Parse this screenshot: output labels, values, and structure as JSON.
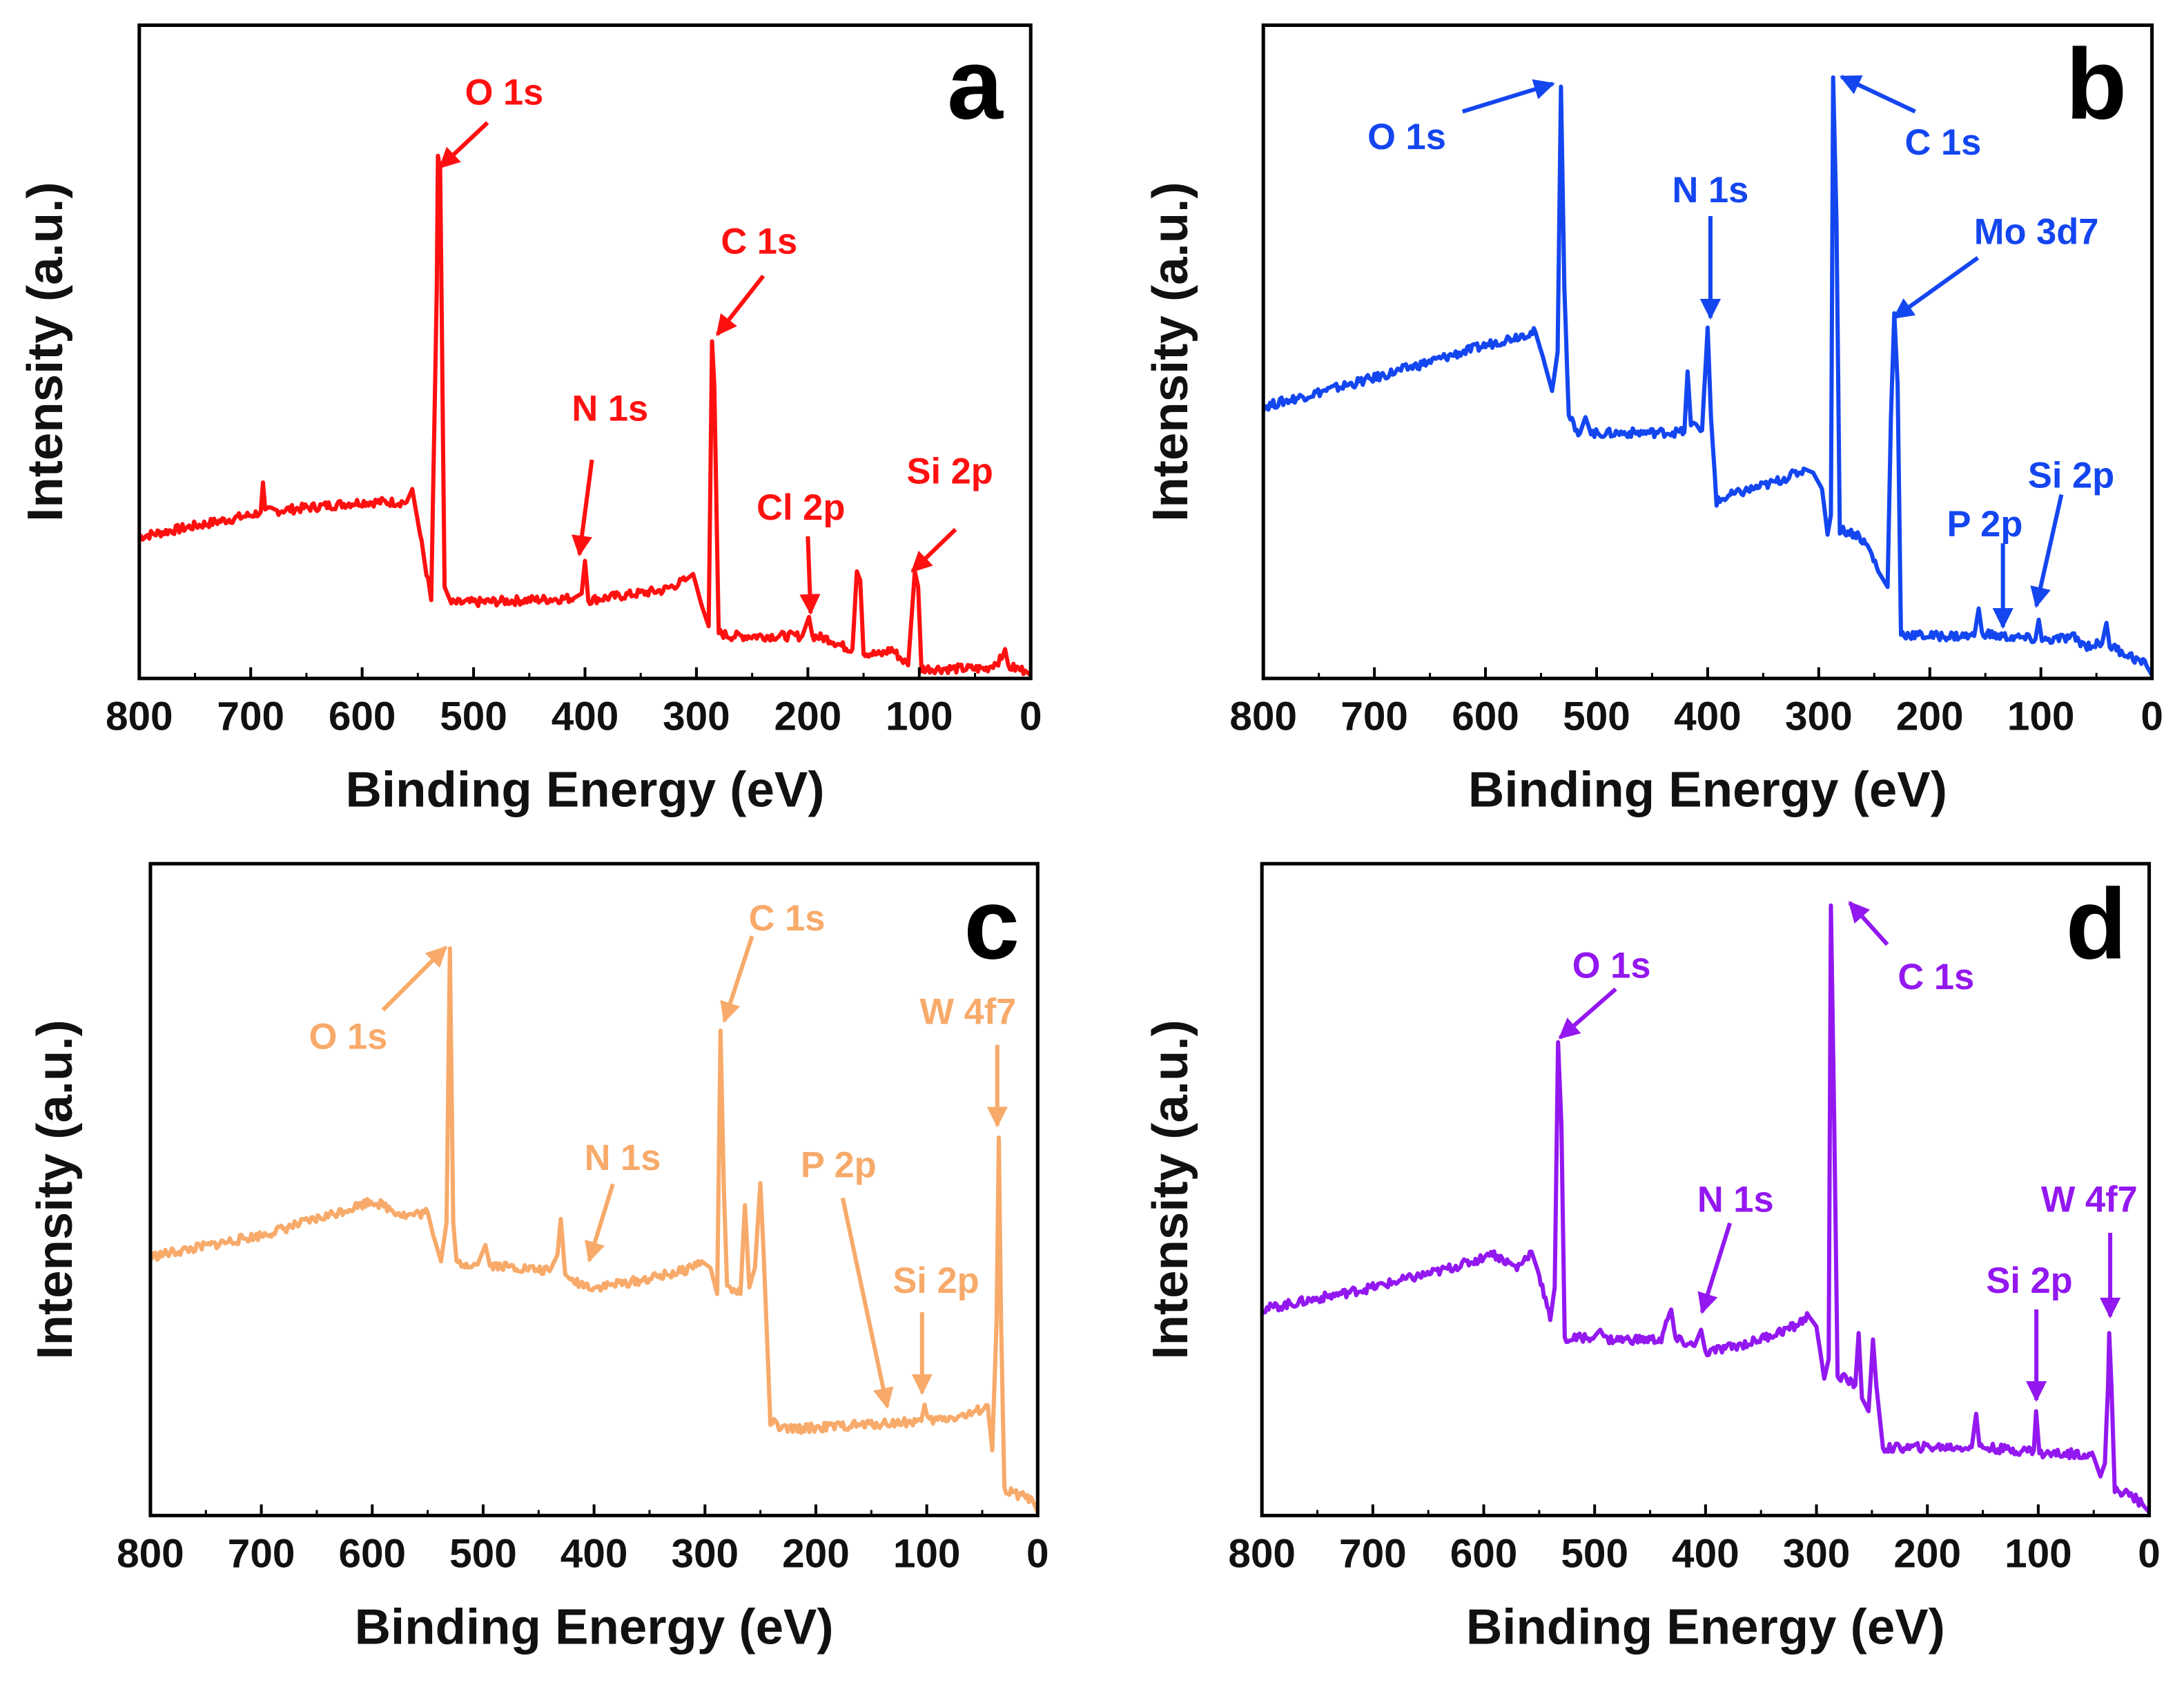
{
  "chart_data": [
    {
      "type": "line",
      "panel": "a",
      "color": "#ff1010",
      "xlabel": "Binding Energy (eV)",
      "ylabel": "Intensity (a.u.)",
      "xlim": [
        800,
        0
      ],
      "ylim": [
        0,
        100
      ],
      "xticks": [
        "800",
        "700",
        "600",
        "500",
        "400",
        "300",
        "200",
        "100",
        "0"
      ],
      "series": {
        "name": "a",
        "points": [
          [
            800,
            21.7
          ],
          [
            700,
            25
          ],
          [
            691,
            25.5
          ],
          [
            689,
            30
          ],
          [
            687,
            25.5
          ],
          [
            600,
            27
          ],
          [
            560,
            27
          ],
          [
            555,
            29
          ],
          [
            548,
            22
          ],
          [
            538,
            12
          ],
          [
            533,
            60
          ],
          [
            532,
            80
          ],
          [
            530,
            78
          ],
          [
            526,
            14
          ],
          [
            520,
            11.5
          ],
          [
            410,
            12.3
          ],
          [
            403,
            13
          ],
          [
            400,
            18
          ],
          [
            397,
            12
          ],
          [
            330,
            13.5
          ],
          [
            310,
            15
          ],
          [
            303,
            16
          ],
          [
            295,
            11
          ],
          [
            289,
            8
          ],
          [
            286,
            51.6
          ],
          [
            284,
            45
          ],
          [
            280,
            7
          ],
          [
            270,
            6.5
          ],
          [
            205,
            6.5
          ],
          [
            199,
            9.4
          ],
          [
            196,
            6.5
          ],
          [
            180,
            6
          ],
          [
            170,
            5
          ],
          [
            160,
            4.5
          ],
          [
            156,
            16.4
          ],
          [
            153,
            15
          ],
          [
            150,
            4
          ],
          [
            135,
            3.6
          ],
          [
            125,
            4.5
          ],
          [
            110,
            2
          ],
          [
            104,
            16.4
          ],
          [
            101,
            14
          ],
          [
            98,
            1.5
          ],
          [
            40,
            1.5
          ],
          [
            26,
            3
          ],
          [
            23,
            4.5
          ],
          [
            20,
            1.8
          ],
          [
            5,
            1.2
          ],
          [
            0,
            0.5
          ]
        ]
      },
      "annotations": [
        "O 1s",
        "C 1s",
        "N 1s",
        "Cl 2p",
        "Si 2p"
      ]
    },
    {
      "type": "line",
      "panel": "b",
      "color": "#1446f0",
      "xlabel": "Binding Energy (eV)",
      "ylabel": "Intensity (a.u.)",
      "xlim": [
        800,
        0
      ],
      "ylim": [
        0,
        100
      ],
      "xticks": [
        "800",
        "700",
        "600",
        "500",
        "400",
        "300",
        "200",
        "100",
        "0"
      ],
      "series": {
        "name": "b",
        "points": [
          [
            800,
            41.6
          ],
          [
            700,
            46
          ],
          [
            600,
            51
          ],
          [
            565,
            52.7
          ],
          [
            555,
            53
          ],
          [
            548,
            49
          ],
          [
            540,
            44
          ],
          [
            535,
            50
          ],
          [
            532,
            90.6
          ],
          [
            529,
            60
          ],
          [
            525,
            40
          ],
          [
            515,
            37.5
          ],
          [
            510,
            40
          ],
          [
            505,
            37.5
          ],
          [
            430,
            37.7
          ],
          [
            421,
            37.7
          ],
          [
            418,
            47
          ],
          [
            415,
            39
          ],
          [
            405,
            38
          ],
          [
            400,
            53.7
          ],
          [
            397,
            40
          ],
          [
            392,
            27
          ],
          [
            380,
            28
          ],
          [
            340,
            30
          ],
          [
            312,
            32
          ],
          [
            305,
            31.5
          ],
          [
            297,
            29
          ],
          [
            292,
            22
          ],
          [
            289,
            25
          ],
          [
            287,
            92
          ],
          [
            284,
            70
          ],
          [
            281,
            22.8
          ],
          [
            265,
            22
          ],
          [
            255,
            20
          ],
          [
            245,
            16
          ],
          [
            238,
            14
          ],
          [
            235,
            40
          ],
          [
            232,
            55.9
          ],
          [
            229,
            45
          ],
          [
            226,
            6.8
          ],
          [
            200,
            6.5
          ],
          [
            160,
            6.5
          ],
          [
            156,
            10.7
          ],
          [
            153,
            7
          ],
          [
            140,
            6.5
          ],
          [
            105,
            6
          ],
          [
            102,
            9
          ],
          [
            99,
            5.8
          ],
          [
            70,
            6.3
          ],
          [
            60,
            5
          ],
          [
            45,
            5.3
          ],
          [
            41,
            8.5
          ],
          [
            38,
            5
          ],
          [
            20,
            3.5
          ],
          [
            5,
            2
          ],
          [
            0,
            0.5
          ]
        ]
      },
      "annotations": [
        "O 1s",
        "C 1s",
        "N 1s",
        "Mo 3d7",
        "P 2p",
        "Si 2p"
      ]
    },
    {
      "type": "line",
      "panel": "c",
      "color": "#f7aa6a",
      "xlabel": "Binding Energy (eV)",
      "ylabel": "Intensity (a.u.)",
      "xlim": [
        800,
        0
      ],
      "ylim": [
        0,
        100
      ],
      "xticks": [
        "800",
        "700",
        "600",
        "500",
        "400",
        "300",
        "200",
        "100",
        "0"
      ],
      "series": {
        "name": "c",
        "points": [
          [
            800,
            39.7
          ],
          [
            700,
            43
          ],
          [
            640,
            46
          ],
          [
            600,
            48.3
          ],
          [
            570,
            46
          ],
          [
            550,
            46.5
          ],
          [
            545,
            43
          ],
          [
            538,
            39
          ],
          [
            533,
            45
          ],
          [
            530,
            87
          ],
          [
            527,
            45
          ],
          [
            524,
            38.7
          ],
          [
            505,
            38.5
          ],
          [
            498,
            41.5
          ],
          [
            494,
            38.5
          ],
          [
            440,
            37.5
          ],
          [
            433,
            40
          ],
          [
            430,
            45.5
          ],
          [
            426,
            37
          ],
          [
            420,
            36
          ],
          [
            400,
            35
          ],
          [
            360,
            36
          ],
          [
            320,
            37.5
          ],
          [
            303,
            39
          ],
          [
            295,
            38
          ],
          [
            289,
            34
          ],
          [
            286,
            74.4
          ],
          [
            283,
            50
          ],
          [
            280,
            35
          ],
          [
            268,
            34
          ],
          [
            264,
            47.6
          ],
          [
            260,
            35
          ],
          [
            255,
            38
          ],
          [
            250,
            51
          ],
          [
            247,
            40
          ],
          [
            241,
            14.5
          ],
          [
            230,
            13.2
          ],
          [
            150,
            14
          ],
          [
            105,
            14.5
          ],
          [
            102,
            17
          ],
          [
            99,
            14.5
          ],
          [
            60,
            15.5
          ],
          [
            45,
            16.9
          ],
          [
            41,
            10
          ],
          [
            37,
            30
          ],
          [
            35,
            58
          ],
          [
            33,
            30
          ],
          [
            30,
            3.8
          ],
          [
            15,
            3
          ],
          [
            5,
            2.5
          ],
          [
            0,
            0.5
          ]
        ]
      },
      "annotations": [
        "O 1s",
        "C 1s",
        "N 1s",
        "P 2p",
        "Si 2p",
        "W 4f7"
      ]
    },
    {
      "type": "line",
      "panel": "d",
      "color": "#9318f0",
      "xlabel": "Binding Energy (eV)",
      "ylabel": "Intensity (a.u.)",
      "xlim": [
        800,
        0
      ],
      "ylim": [
        0,
        100
      ],
      "xticks": [
        "800",
        "700",
        "600",
        "500",
        "400",
        "300",
        "200",
        "100",
        "0"
      ],
      "series": {
        "name": "d",
        "points": [
          [
            800,
            31.6
          ],
          [
            700,
            35
          ],
          [
            640,
            37.5
          ],
          [
            600,
            39.5
          ],
          [
            595,
            40.5
          ],
          [
            570,
            38
          ],
          [
            557,
            40.5
          ],
          [
            550,
            37
          ],
          [
            540,
            30
          ],
          [
            536,
            35
          ],
          [
            533,
            72.6
          ],
          [
            530,
            60
          ],
          [
            527,
            27
          ],
          [
            500,
            27.5
          ],
          [
            495,
            28.5
          ],
          [
            490,
            27
          ],
          [
            440,
            27
          ],
          [
            431,
            31.6
          ],
          [
            427,
            27
          ],
          [
            410,
            26
          ],
          [
            404,
            28.5
          ],
          [
            400,
            25
          ],
          [
            360,
            26.5
          ],
          [
            320,
            29
          ],
          [
            307,
            30.6
          ],
          [
            300,
            29
          ],
          [
            293,
            21
          ],
          [
            289,
            24
          ],
          [
            287,
            93.6
          ],
          [
            284,
            60
          ],
          [
            281,
            21.6
          ],
          [
            265,
            20
          ],
          [
            262,
            28
          ],
          [
            259,
            18
          ],
          [
            253,
            16
          ],
          [
            249,
            27
          ],
          [
            246,
            20
          ],
          [
            240,
            10.3
          ],
          [
            200,
            10.5
          ],
          [
            160,
            10.5
          ],
          [
            156,
            15.6
          ],
          [
            153,
            10.5
          ],
          [
            120,
            10
          ],
          [
            104,
            10
          ],
          [
            102,
            16
          ],
          [
            99,
            9.5
          ],
          [
            60,
            9.5
          ],
          [
            50,
            9
          ],
          [
            44,
            6
          ],
          [
            40,
            8
          ],
          [
            37,
            20
          ],
          [
            36,
            28
          ],
          [
            34,
            20
          ],
          [
            31,
            4
          ],
          [
            15,
            3
          ],
          [
            5,
            1.5
          ],
          [
            0,
            0.5
          ]
        ]
      },
      "annotations": [
        "O 1s",
        "C 1s",
        "N 1s",
        "Si 2p",
        "W 4f7"
      ]
    }
  ],
  "panel_letters": [
    "a",
    "b",
    "c",
    "d"
  ]
}
